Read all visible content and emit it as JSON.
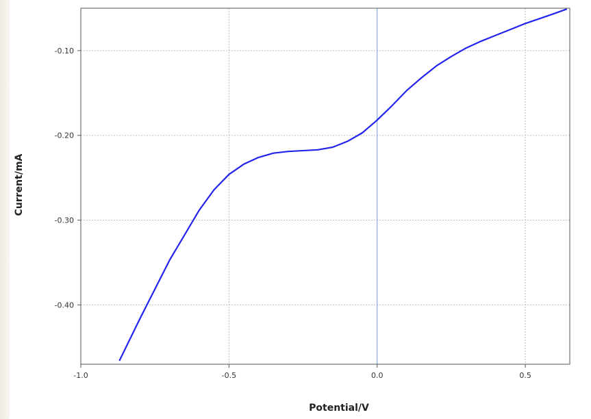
{
  "chart_data": {
    "type": "line",
    "xlabel": "Potential/V",
    "ylabel": "Current/mA",
    "xlim": [
      -1.0,
      0.65
    ],
    "ylim": [
      -0.47,
      -0.05
    ],
    "x_ticks": [
      -1.0,
      -0.5,
      0.0,
      0.5
    ],
    "x_tick_labels": [
      "-1.0",
      "-0.5",
      "0.0",
      "0.5"
    ],
    "y_ticks": [
      -0.1,
      -0.2,
      -0.3,
      -0.4
    ],
    "y_tick_labels": [
      "-0.10",
      "-0.20",
      "-0.30",
      "-0.40"
    ],
    "grid": true,
    "vertical_marker_x": 0.0,
    "colors": {
      "series": "#2323ee",
      "marker": "#7799ee",
      "grid": "#bbbbbb",
      "frame": "#555555"
    },
    "series": [
      {
        "x": [
          -0.87,
          -0.8,
          -0.7,
          -0.6,
          -0.55,
          -0.5,
          -0.45,
          -0.4,
          -0.35,
          -0.3,
          -0.2,
          -0.15,
          -0.1,
          -0.05,
          0.0,
          0.05,
          0.1,
          0.15,
          0.2,
          0.25,
          0.3,
          0.35,
          0.4,
          0.45,
          0.5,
          0.55,
          0.6,
          0.64
        ],
        "y": [
          -0.466,
          -0.416,
          -0.347,
          -0.288,
          -0.264,
          -0.246,
          -0.234,
          -0.226,
          -0.221,
          -0.219,
          -0.217,
          -0.214,
          -0.207,
          -0.197,
          -0.182,
          -0.165,
          -0.147,
          -0.132,
          -0.118,
          -0.107,
          -0.097,
          -0.089,
          -0.082,
          -0.075,
          -0.068,
          -0.062,
          -0.056,
          -0.051
        ]
      }
    ]
  }
}
